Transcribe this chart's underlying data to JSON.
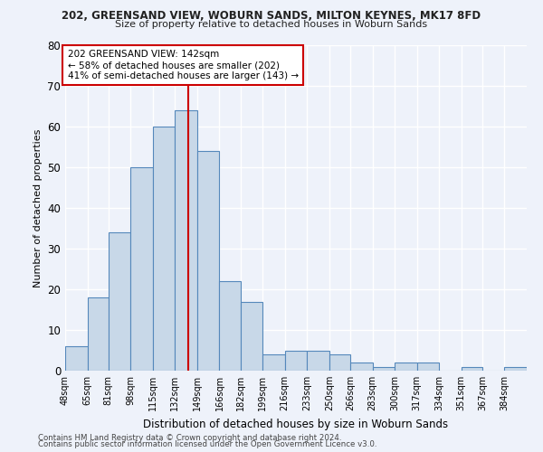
{
  "title1": "202, GREENSAND VIEW, WOBURN SANDS, MILTON KEYNES, MK17 8FD",
  "title2": "Size of property relative to detached houses in Woburn Sands",
  "xlabel": "Distribution of detached houses by size in Woburn Sands",
  "ylabel": "Number of detached properties",
  "footnote1": "Contains HM Land Registry data © Crown copyright and database right 2024.",
  "footnote2": "Contains public sector information licensed under the Open Government Licence v3.0.",
  "annotation_line1": "202 GREENSAND VIEW: 142sqm",
  "annotation_line2": "← 58% of detached houses are smaller (202)",
  "annotation_line3": "41% of semi-detached houses are larger (143) →",
  "property_size": 142,
  "bin_labels": [
    "48sqm",
    "65sqm",
    "81sqm",
    "98sqm",
    "115sqm",
    "132sqm",
    "149sqm",
    "166sqm",
    "182sqm",
    "199sqm",
    "216sqm",
    "233sqm",
    "250sqm",
    "266sqm",
    "283sqm",
    "300sqm",
    "317sqm",
    "334sqm",
    "351sqm",
    "367sqm",
    "384sqm"
  ],
  "bin_edges": [
    48,
    65,
    81,
    98,
    115,
    132,
    149,
    166,
    182,
    199,
    216,
    233,
    250,
    266,
    283,
    300,
    317,
    334,
    351,
    367,
    384,
    401
  ],
  "bar_heights": [
    6,
    18,
    34,
    50,
    60,
    64,
    54,
    22,
    17,
    4,
    5,
    5,
    4,
    2,
    1,
    2,
    2,
    0,
    1,
    0,
    1
  ],
  "bar_color": "#c8d8e8",
  "bar_edge_color": "#5588bb",
  "vline_x": 142,
  "vline_color": "#cc0000",
  "ylim": [
    0,
    80
  ],
  "yticks": [
    0,
    10,
    20,
    30,
    40,
    50,
    60,
    70,
    80
  ],
  "bg_color": "#eef2fa",
  "grid_color": "#ffffff",
  "annotation_box_color": "#ffffff",
  "annotation_box_edge": "#cc0000"
}
